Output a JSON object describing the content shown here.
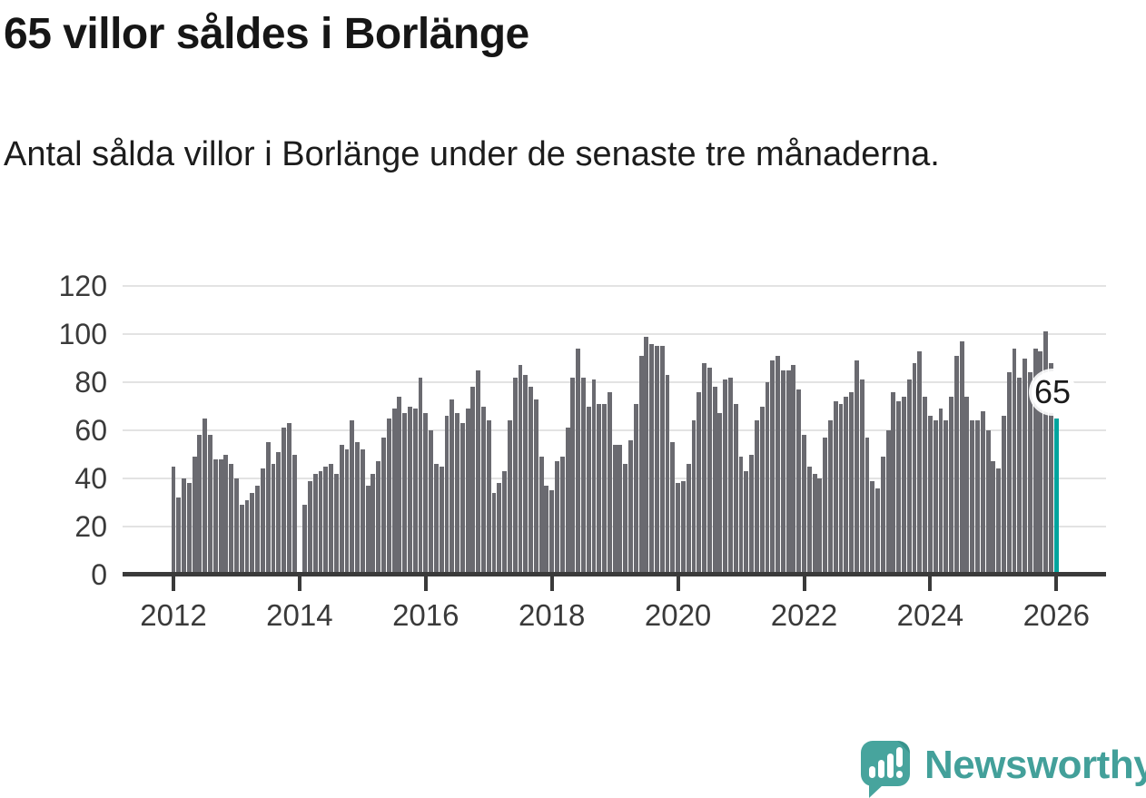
{
  "header": {
    "title": "65 villor såldes i Borlänge",
    "subtitle": "Antal sålda villor i Borlänge under de senaste tre månaderna."
  },
  "brand": {
    "name": "Newsworthy"
  },
  "chart_data": {
    "type": "bar",
    "title": "65 villor såldes i Borlänge",
    "subtitle": "Antal sålda villor i Borlänge under de senaste tre månaderna.",
    "frequency": "monthly",
    "start_month": "2012-01",
    "end_month": "2026-01",
    "note": "value at 2014-01 missing (gap in bars); final bar highlighted",
    "x_tick_labels": [
      "2012",
      "2014",
      "2016",
      "2018",
      "2020",
      "2022",
      "2024",
      "2026"
    ],
    "x_tick_month_indices": [
      0,
      24,
      48,
      72,
      96,
      120,
      144,
      168
    ],
    "y_ticks": [
      0,
      20,
      40,
      60,
      80,
      100,
      120
    ],
    "ylim": [
      0,
      120
    ],
    "grid": true,
    "values": [
      45,
      32,
      40,
      38,
      49,
      58,
      65,
      58,
      48,
      48,
      50,
      46,
      40,
      29,
      31,
      34,
      37,
      44,
      55,
      46,
      51,
      61,
      63,
      50,
      null,
      29,
      39,
      42,
      43,
      45,
      46,
      42,
      54,
      52,
      64,
      55,
      52,
      37,
      42,
      47,
      57,
      65,
      69,
      74,
      67,
      70,
      69,
      82,
      67,
      60,
      46,
      45,
      66,
      73,
      67,
      63,
      69,
      78,
      85,
      70,
      64,
      34,
      38,
      43,
      64,
      82,
      87,
      83,
      78,
      73,
      49,
      37,
      35,
      47,
      49,
      61,
      82,
      94,
      82,
      70,
      81,
      71,
      71,
      76,
      54,
      54,
      46,
      56,
      71,
      91,
      99,
      96,
      95,
      95,
      83,
      55,
      38,
      39,
      46,
      64,
      76,
      88,
      86,
      78,
      67,
      81,
      82,
      71,
      49,
      43,
      50,
      64,
      70,
      80,
      89,
      91,
      85,
      85,
      87,
      77,
      58,
      45,
      42,
      40,
      57,
      64,
      72,
      71,
      74,
      76,
      89,
      81,
      57,
      39,
      36,
      49,
      60,
      76,
      72,
      74,
      81,
      88,
      93,
      74,
      66,
      64,
      69,
      64,
      74,
      91,
      97,
      74,
      64,
      64,
      68,
      60,
      47,
      44,
      66,
      84,
      94,
      82,
      90,
      84,
      94,
      93,
      101,
      88,
      65
    ],
    "highlight_index": 168,
    "highlight_label": "65",
    "highlight_value": 65,
    "colors": {
      "bar": "#6a6a70",
      "highlight": "#00a49e",
      "axis": "#3a3a3a",
      "grid": "#e3e3e3",
      "brand": "#43a09a"
    },
    "legend": "none"
  }
}
